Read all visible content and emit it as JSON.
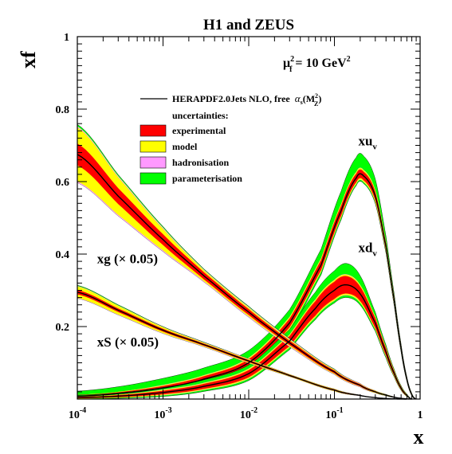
{
  "chart_data": {
    "type": "line",
    "title": "H1 and ZEUS",
    "subtitle": {
      "text": "μ",
      "sub": "f",
      "exp": "2",
      "rest": " = 10 GeV",
      "rest_exp": "2"
    },
    "xlabel": "x",
    "ylabel": "xf",
    "xscale": "log",
    "xlim": [
      0.0001,
      1
    ],
    "ylim": [
      0,
      1
    ],
    "x_ticks": [
      {
        "base": "10",
        "exp": "-4",
        "value": 0.0001
      },
      {
        "base": "10",
        "exp": "-3",
        "value": 0.001
      },
      {
        "base": "10",
        "exp": "-2",
        "value": 0.01
      },
      {
        "base": "10",
        "exp": "-1",
        "value": 0.1
      },
      {
        "base": "1",
        "exp": "",
        "value": 1
      }
    ],
    "y_ticks": [
      {
        "label": "0.2",
        "value": 0.2
      },
      {
        "label": "0.4",
        "value": 0.4
      },
      {
        "label": "0.6",
        "value": 0.6
      },
      {
        "label": "0.8",
        "value": 0.8
      },
      {
        "label": "1",
        "value": 1.0
      }
    ],
    "legend": {
      "position": "top-center",
      "line_entry": {
        "text": "HERAPDF2.0Jets NLO, free",
        "alpha_text": "α",
        "alpha_sub": "s",
        "alpha_arg": "(M",
        "alpha_arg_exp": "2",
        "alpha_arg_sub": "Z",
        "alpha_close": ")"
      },
      "header": "uncertainties:",
      "entries": [
        {
          "label": "experimental",
          "color": "#ff0000"
        },
        {
          "label": "model",
          "color": "#ffff00"
        },
        {
          "label": "hadronisation",
          "color": "#ff99ff"
        },
        {
          "label": "parameterisation",
          "color": "#00ff00"
        }
      ]
    },
    "band_colors": {
      "central": "#000000",
      "experimental": "#ff0000",
      "model": "#ffff00",
      "hadronisation": "#ff99ff",
      "parameterisation": "#00ff00"
    },
    "series": [
      {
        "name": "xu_v",
        "label_main": "xu",
        "label_sub": "v",
        "x": [
          0.0001,
          0.0003,
          0.001,
          0.003,
          0.01,
          0.03,
          0.07,
          0.12,
          0.18,
          0.22,
          0.3,
          0.4,
          0.5,
          0.6,
          0.7,
          0.8,
          0.9
        ],
        "values": [
          0.008,
          0.015,
          0.03,
          0.055,
          0.1,
          0.21,
          0.37,
          0.52,
          0.61,
          0.615,
          0.56,
          0.42,
          0.27,
          0.14,
          0.055,
          0.012,
          0.0
        ],
        "exp_err": [
          0.003,
          0.004,
          0.006,
          0.008,
          0.01,
          0.012,
          0.014,
          0.014,
          0.012,
          0.012,
          0.012,
          0.01,
          0.008,
          0.006,
          0.004,
          0.002,
          0.0
        ],
        "model_err": [
          0.001,
          0.001,
          0.002,
          0.002,
          0.003,
          0.004,
          0.004,
          0.004,
          0.004,
          0.004,
          0.004,
          0.003,
          0.003,
          0.002,
          0.001,
          0.001,
          0.0
        ],
        "had_err": [
          0.0,
          0.0,
          0.001,
          0.001,
          0.001,
          0.001,
          0.001,
          0.001,
          0.001,
          0.001,
          0.001,
          0.001,
          0.001,
          0.001,
          0.0,
          0.0,
          0.0
        ],
        "par_up": [
          0.01,
          0.014,
          0.018,
          0.02,
          0.02,
          0.02,
          0.025,
          0.035,
          0.04,
          0.038,
          0.03,
          0.015,
          0.006,
          0.003,
          0.002,
          0.001,
          0.0
        ],
        "par_down": [
          0.002,
          0.002,
          0.003,
          0.004,
          0.006,
          0.008,
          0.008,
          0.006,
          0.004,
          0.004,
          0.004,
          0.004,
          0.003,
          0.002,
          0.001,
          0.0,
          0.0
        ],
        "label_at": [
          0.19,
          0.7
        ]
      },
      {
        "name": "xd_v",
        "label_main": "xd",
        "label_sub": "v",
        "x": [
          0.0001,
          0.0003,
          0.001,
          0.003,
          0.01,
          0.03,
          0.06,
          0.1,
          0.14,
          0.2,
          0.3,
          0.4,
          0.5,
          0.6,
          0.7,
          0.8
        ],
        "values": [
          0.004,
          0.008,
          0.018,
          0.035,
          0.07,
          0.16,
          0.25,
          0.3,
          0.315,
          0.29,
          0.21,
          0.13,
          0.07,
          0.03,
          0.01,
          0.0
        ],
        "exp_err": [
          0.002,
          0.003,
          0.005,
          0.007,
          0.01,
          0.014,
          0.02,
          0.024,
          0.024,
          0.02,
          0.014,
          0.01,
          0.006,
          0.004,
          0.002,
          0.0
        ],
        "model_err": [
          0.001,
          0.001,
          0.002,
          0.002,
          0.003,
          0.003,
          0.004,
          0.004,
          0.004,
          0.004,
          0.003,
          0.002,
          0.002,
          0.001,
          0.001,
          0.0
        ],
        "had_err": [
          0.0,
          0.0,
          0.001,
          0.001,
          0.001,
          0.001,
          0.001,
          0.001,
          0.001,
          0.001,
          0.001,
          0.001,
          0.0,
          0.0,
          0.0,
          0.0
        ],
        "par_up": [
          0.004,
          0.005,
          0.006,
          0.008,
          0.01,
          0.014,
          0.02,
          0.025,
          0.03,
          0.025,
          0.012,
          0.006,
          0.003,
          0.002,
          0.001,
          0.0
        ],
        "par_down": [
          0.002,
          0.002,
          0.003,
          0.004,
          0.005,
          0.006,
          0.006,
          0.006,
          0.006,
          0.006,
          0.005,
          0.004,
          0.002,
          0.001,
          0.0,
          0.0
        ],
        "label_at": [
          0.19,
          0.405
        ]
      },
      {
        "name": "xg (× 0.05)",
        "label_main": "xg (× 0.05)",
        "label_sub": "",
        "x": [
          0.0001,
          0.0003,
          0.001,
          0.003,
          0.01,
          0.03,
          0.1,
          0.2,
          0.3,
          0.4,
          0.5,
          0.6,
          0.7,
          0.8
        ],
        "values": [
          0.675,
          0.56,
          0.44,
          0.34,
          0.24,
          0.155,
          0.075,
          0.038,
          0.02,
          0.011,
          0.005,
          0.002,
          0.0005,
          0.0
        ],
        "exp_err": [
          0.03,
          0.022,
          0.015,
          0.01,
          0.008,
          0.006,
          0.004,
          0.003,
          0.002,
          0.001,
          0.001,
          0.0,
          0.0,
          0.0
        ],
        "model_err": [
          0.045,
          0.03,
          0.015,
          0.005,
          0.004,
          0.003,
          0.002,
          0.001,
          0.001,
          0.001,
          0.0,
          0.0,
          0.0,
          0.0
        ],
        "had_err": [
          0.003,
          0.003,
          0.003,
          0.002,
          0.002,
          0.002,
          0.001,
          0.001,
          0.0,
          0.0,
          0.0,
          0.0,
          0.0,
          0.0
        ],
        "par_up": [
          0.005,
          0.004,
          0.003,
          0.002,
          0.002,
          0.001,
          0.001,
          0.0,
          0.0,
          0.0,
          0.0,
          0.0,
          0.0,
          0.0
        ],
        "par_down": [
          0.0,
          0.0,
          0.0,
          0.0,
          0.0,
          0.0,
          0.0,
          0.0,
          0.0,
          0.0,
          0.0,
          0.0,
          0.0,
          0.0
        ],
        "label_at": [
          0.00017,
          0.375
        ]
      },
      {
        "name": "xS (× 0.05)",
        "label_main": "xS (× 0.05)",
        "label_sub": "",
        "x": [
          0.0001,
          0.0003,
          0.001,
          0.003,
          0.01,
          0.03,
          0.1,
          0.2,
          0.3,
          0.4,
          0.5,
          0.6,
          0.7
        ],
        "values": [
          0.295,
          0.245,
          0.19,
          0.15,
          0.105,
          0.065,
          0.025,
          0.01,
          0.004,
          0.0015,
          0.0005,
          0.0001,
          0.0
        ],
        "exp_err": [
          0.006,
          0.005,
          0.004,
          0.003,
          0.003,
          0.002,
          0.002,
          0.001,
          0.0,
          0.0,
          0.0,
          0.0,
          0.0
        ],
        "model_err": [
          0.01,
          0.007,
          0.004,
          0.002,
          0.002,
          0.001,
          0.001,
          0.0,
          0.0,
          0.0,
          0.0,
          0.0,
          0.0
        ],
        "had_err": [
          0.001,
          0.001,
          0.001,
          0.001,
          0.001,
          0.0,
          0.0,
          0.0,
          0.0,
          0.0,
          0.0,
          0.0,
          0.0
        ],
        "par_up": [
          0.002,
          0.002,
          0.001,
          0.001,
          0.0,
          0.0,
          0.0,
          0.0,
          0.0,
          0.0,
          0.0,
          0.0,
          0.0
        ],
        "par_down": [
          0.0,
          0.0,
          0.0,
          0.0,
          0.0,
          0.0,
          0.0,
          0.0,
          0.0,
          0.0,
          0.0,
          0.0,
          0.0
        ],
        "label_at": [
          0.00017,
          0.145
        ]
      }
    ]
  }
}
